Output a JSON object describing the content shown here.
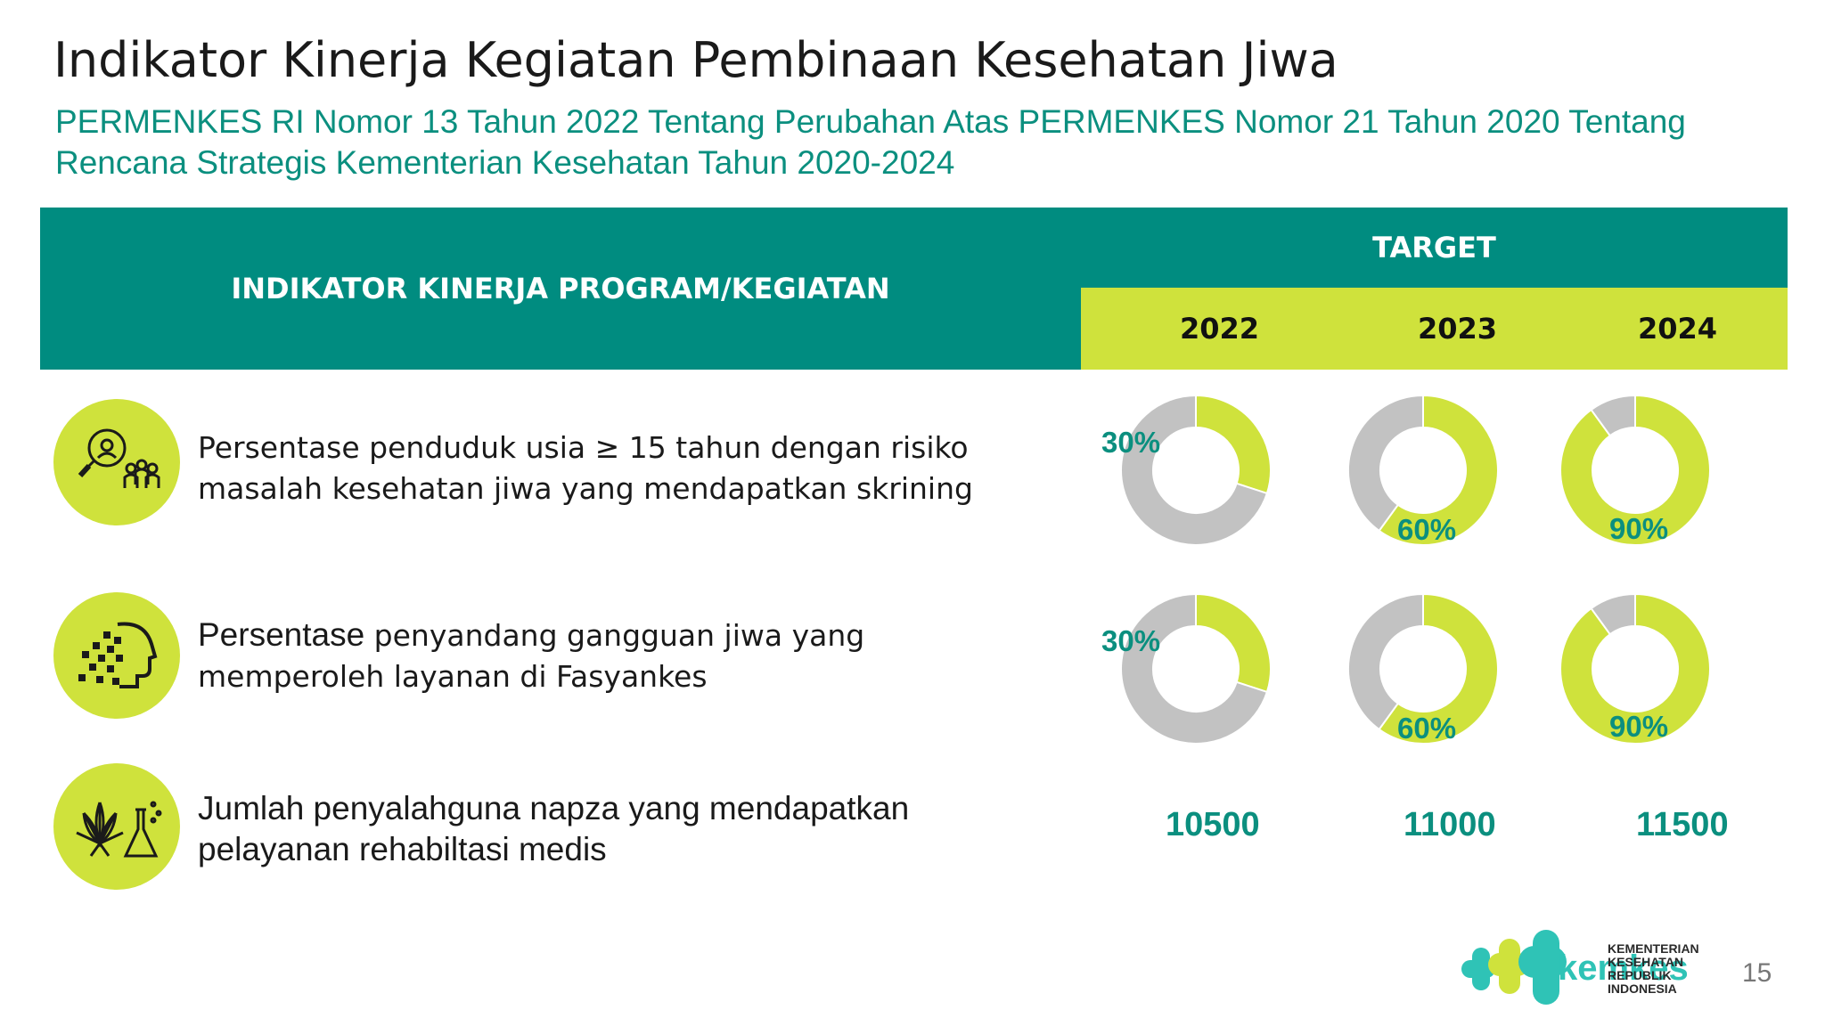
{
  "header": {
    "title": "Indikator Kinerja Kegiatan Pembinaan Kesehatan Jiwa",
    "subtitle": "PERMENKES RI Nomor 13 Tahun 2022 Tentang Perubahan Atas PERMENKES Nomor 21 Tahun 2020 Tentang Rencana Strategis Kementerian Kesehatan Tahun 2020-2024"
  },
  "table": {
    "indicator_header": "INDIKATOR KINERJA PROGRAM/KEGIATAN",
    "target_header": "TARGET",
    "years": [
      "2022",
      "2023",
      "2024"
    ],
    "rows": [
      {
        "icon": "magnifier-people-icon",
        "text": "Persentase penduduk usia ≥ 15 tahun dengan risiko masalah kesehatan jiwa yang mendapatkan skrining",
        "targets": [
          "30%",
          "60%",
          "90%"
        ]
      },
      {
        "icon": "pixelated-head-icon",
        "text_lead": "Persentase",
        "text_rest": " penyandang gangguan jiwa yang memperoleh layanan di Fasyankes",
        "targets": [
          "30%",
          "60%",
          "90%"
        ]
      },
      {
        "icon": "cannabis-flask-icon",
        "text": "Jumlah penyalahguna napza yang mendapatkan pelayanan rehabiltasi medis",
        "targets": [
          "10500",
          "11000",
          "11500"
        ]
      }
    ]
  },
  "chart_data": [
    {
      "type": "pie",
      "title": "",
      "categories": [
        "target",
        "remaining"
      ],
      "values": [
        30,
        70
      ],
      "colors": [
        "#cfe23c",
        "#c2c2c2"
      ]
    },
    {
      "type": "pie",
      "title": "",
      "categories": [
        "target",
        "remaining"
      ],
      "values": [
        60,
        40
      ],
      "colors": [
        "#cfe23c",
        "#c2c2c2"
      ]
    },
    {
      "type": "pie",
      "title": "",
      "categories": [
        "target",
        "remaining"
      ],
      "values": [
        90,
        10
      ],
      "colors": [
        "#cfe23c",
        "#c2c2c2"
      ]
    },
    {
      "type": "pie",
      "title": "",
      "categories": [
        "target",
        "remaining"
      ],
      "values": [
        30,
        70
      ],
      "colors": [
        "#cfe23c",
        "#c2c2c2"
      ]
    },
    {
      "type": "pie",
      "title": "",
      "categories": [
        "target",
        "remaining"
      ],
      "values": [
        60,
        40
      ],
      "colors": [
        "#cfe23c",
        "#c2c2c2"
      ]
    },
    {
      "type": "pie",
      "title": "",
      "categories": [
        "target",
        "remaining"
      ],
      "values": [
        90,
        10
      ],
      "colors": [
        "#cfe23c",
        "#c2c2c2"
      ]
    }
  ],
  "colors": {
    "teal": "#008c80",
    "lime": "#cfe23c",
    "grey": "#c2c2c2",
    "accent_text": "#0b8f7f"
  },
  "footer": {
    "logo_icon": "kemenkes-logo-icon",
    "logo_word": "kemkes",
    "logo_org": [
      "KEMENTERIAN",
      "KESEHATAN",
      "REPUBLIK",
      "INDONESIA"
    ],
    "page_number": "15"
  }
}
